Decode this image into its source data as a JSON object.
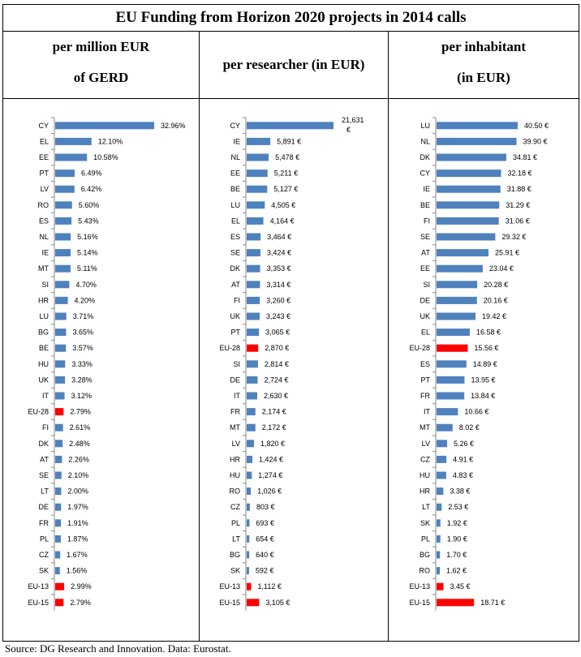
{
  "title": "EU Funding from Horizon 2020 projects in 2014 calls",
  "source": "Source: DG Research and Innovation. Data: Eurostat.",
  "colors": {
    "bar": "#4f81bd",
    "highlight": "#ff0000"
  },
  "chart_data": [
    {
      "type": "bar",
      "orientation": "horizontal",
      "title_lines": [
        "per million EUR",
        "of GERD"
      ],
      "categories": [
        "CY",
        "EL",
        "EE",
        "PT",
        "LV",
        "RO",
        "ES",
        "NL",
        "IE",
        "MT",
        "SI",
        "HR",
        "LU",
        "BG",
        "BE",
        "HU",
        "UK",
        "IT",
        "EU-28",
        "FI",
        "DK",
        "AT",
        "SE",
        "LT",
        "DE",
        "FR",
        "PL",
        "CZ",
        "SK",
        "EU-13",
        "EU-15"
      ],
      "values": [
        32.96,
        12.1,
        10.58,
        6.49,
        6.42,
        5.6,
        5.43,
        5.16,
        5.14,
        5.11,
        4.7,
        4.2,
        3.71,
        3.65,
        3.57,
        3.33,
        3.28,
        3.12,
        2.79,
        2.61,
        2.48,
        2.26,
        2.1,
        2.0,
        1.97,
        1.91,
        1.87,
        1.67,
        1.56,
        2.99,
        2.79
      ],
      "value_labels": [
        "32.96%",
        "12.10%",
        "10.58%",
        "6.49%",
        "6.42%",
        "5.60%",
        "5.43%",
        "5.16%",
        "5.14%",
        "5.11%",
        "4.70%",
        "4.20%",
        "3.71%",
        "3.65%",
        "3.57%",
        "3.33%",
        "3.28%",
        "3.12%",
        "2.79%",
        "2.61%",
        "2.48%",
        "2.26%",
        "2.10%",
        "2.00%",
        "1.97%",
        "1.91%",
        "1.87%",
        "1.67%",
        "1.56%",
        "2.99%",
        "2.79%"
      ],
      "highlighted": [
        "EU-28",
        "EU-13",
        "EU-15"
      ]
    },
    {
      "type": "bar",
      "orientation": "horizontal",
      "title_lines": [
        "per researcher (in EUR)"
      ],
      "categories": [
        "CY",
        "IE",
        "NL",
        "EE",
        "BE",
        "LU",
        "EL",
        "ES",
        "SE",
        "DK",
        "AT",
        "FI",
        "UK",
        "PT",
        "EU-28",
        "SI",
        "DE",
        "IT",
        "FR",
        "MT",
        "LV",
        "HR",
        "HU",
        "RO",
        "CZ",
        "PL",
        "LT",
        "BG",
        "SK",
        "EU-13",
        "EU-15"
      ],
      "values": [
        21631,
        5891,
        5478,
        5211,
        5127,
        4505,
        4164,
        3464,
        3424,
        3353,
        3314,
        3260,
        3243,
        3065,
        2870,
        2814,
        2724,
        2630,
        2174,
        2172,
        1820,
        1424,
        1274,
        1026,
        803,
        693,
        654,
        640,
        592,
        1112,
        3105
      ],
      "value_labels": [
        "21,631 €",
        "5,891 €",
        "5,478 €",
        "5,211 €",
        "5,127 €",
        "4,505 €",
        "4,164 €",
        "3,464 €",
        "3,424 €",
        "3,353 €",
        "3,314 €",
        "3,260 €",
        "3,243 €",
        "3,065 €",
        "2,870 €",
        "2,814 €",
        "2,724 €",
        "2,630 €",
        "2,174 €",
        "2,172 €",
        "1,820 €",
        "1,424 €",
        "1,274 €",
        "1,026 €",
        "803 €",
        "693 €",
        "654 €",
        "640 €",
        "592 €",
        "1,112 €",
        "3,105 €"
      ],
      "highlighted": [
        "EU-28",
        "EU-13",
        "EU-15"
      ]
    },
    {
      "type": "bar",
      "orientation": "horizontal",
      "title_lines": [
        "per inhabitant",
        "(in EUR)"
      ],
      "categories": [
        "LU",
        "NL",
        "DK",
        "CY",
        "IE",
        "BE",
        "FI",
        "SE",
        "AT",
        "EE",
        "SI",
        "DE",
        "UK",
        "EL",
        "EU-28",
        "ES",
        "PT",
        "FR",
        "IT",
        "MT",
        "LV",
        "CZ",
        "HU",
        "HR",
        "LT",
        "SK",
        "PL",
        "BG",
        "RO",
        "EU-13",
        "EU-15"
      ],
      "values": [
        40.5,
        39.9,
        34.81,
        32.18,
        31.88,
        31.29,
        31.06,
        29.32,
        25.91,
        23.04,
        20.28,
        20.16,
        19.42,
        16.58,
        15.56,
        14.89,
        13.95,
        13.84,
        10.66,
        8.02,
        5.26,
        4.91,
        4.83,
        3.38,
        2.53,
        1.92,
        1.9,
        1.7,
        1.62,
        3.45,
        18.71
      ],
      "value_labels": [
        "40.50 €",
        "39.90 €",
        "34.81 €",
        "32.18 €",
        "31.88 €",
        "31.29 €",
        "31.06 €",
        "29.32 €",
        "25.91 €",
        "23.04 €",
        "20.28 €",
        "20.16 €",
        "19.42 €",
        "16.58 €",
        "15.56 €",
        "14.89 €",
        "13.95 €",
        "13.84 €",
        "10.66 €",
        "8.02 €",
        "5.26 €",
        "4.91 €",
        "4.83 €",
        "3.38 €",
        "2.53 €",
        "1.92 €",
        "1.90 €",
        "1.70 €",
        "1.62 €",
        "3.45 €",
        "18.71 €"
      ],
      "highlighted": [
        "EU-28",
        "EU-13",
        "EU-15"
      ]
    }
  ]
}
